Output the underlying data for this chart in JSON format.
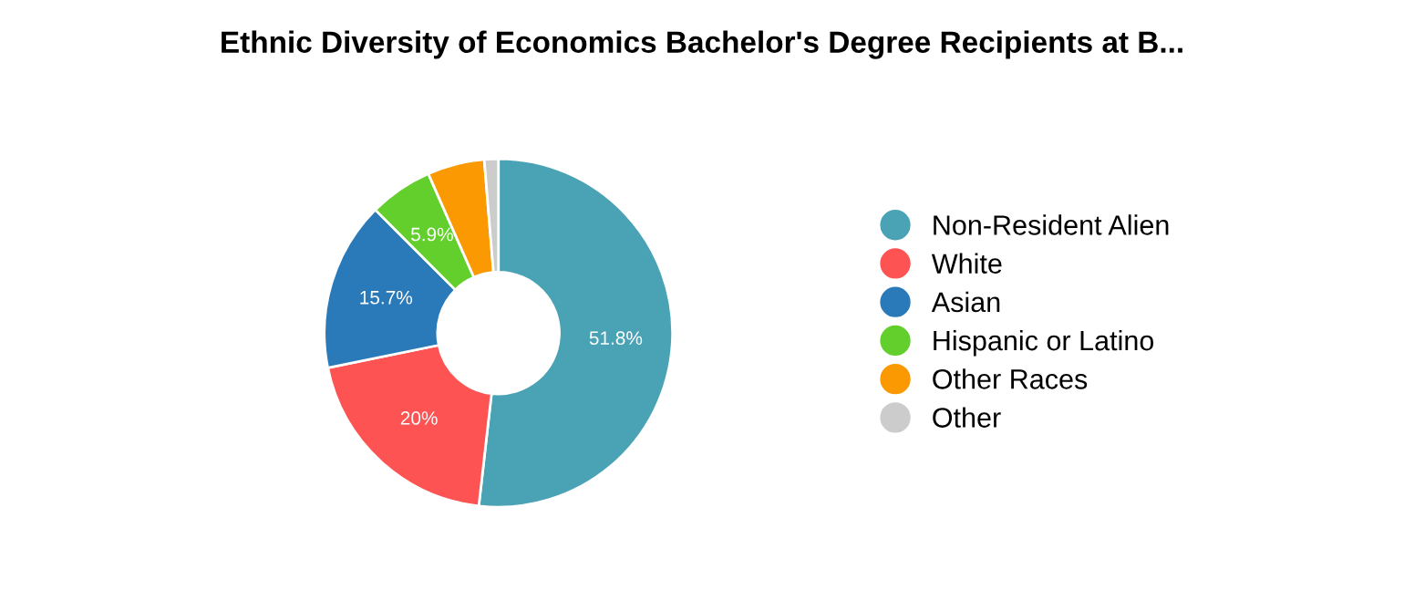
{
  "chart_data": {
    "type": "donut",
    "title": "Ethnic Diversity of Economics Bachelor's Degree Recipients at B...",
    "categories": [
      "Non-Resident Alien",
      "White",
      "Asian",
      "Hispanic or Latino",
      "Other Races",
      "Other"
    ],
    "values": [
      51.8,
      20,
      15.7,
      5.9,
      5.3,
      1.3
    ],
    "colors": [
      "#4aa3b5",
      "#fd5353",
      "#2a7ab9",
      "#63cf2d",
      "#fb9902",
      "#cccccc"
    ],
    "value_labels": [
      "51.8%",
      "20%",
      "15.7%",
      "5.9%",
      null,
      null
    ],
    "legend": "right"
  }
}
